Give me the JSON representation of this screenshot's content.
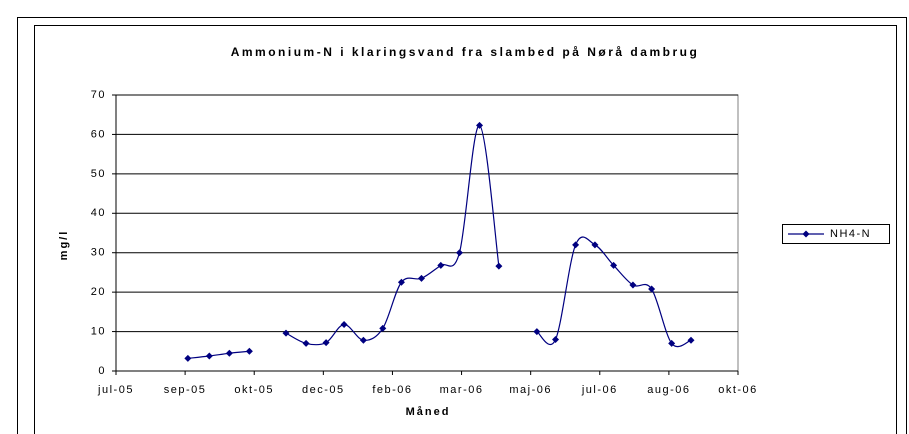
{
  "chart_data": {
    "type": "line",
    "title": "Ammonium-N i klaringsvand fra slambed på Nørå dambrug",
    "x_label": "Måned",
    "y_label": "mg/l",
    "xlim": [
      0,
      9
    ],
    "xticks": [
      {
        "value": 0,
        "label": "jul-05"
      },
      {
        "value": 1,
        "label": "sep-05"
      },
      {
        "value": 2,
        "label": "okt-05"
      },
      {
        "value": 3,
        "label": "dec-05"
      },
      {
        "value": 4,
        "label": "feb-06"
      },
      {
        "value": 5,
        "label": "mar-06"
      },
      {
        "value": 6,
        "label": "maj-06"
      },
      {
        "value": 7,
        "label": "jul-06"
      },
      {
        "value": 8,
        "label": "aug-06"
      },
      {
        "value": 9,
        "label": "okt-06"
      }
    ],
    "ylim": [
      0,
      70
    ],
    "yticks": [
      0,
      10,
      20,
      30,
      40,
      50,
      60,
      70
    ],
    "grid": true,
    "legend": "right",
    "x": [
      1.04,
      1.35,
      1.64,
      1.93,
      null,
      2.46,
      2.75,
      3.04,
      3.3,
      3.58,
      3.86,
      4.13,
      4.42,
      4.7,
      4.97,
      5.26,
      5.54,
      null,
      6.09,
      6.36,
      6.65,
      6.93,
      7.2,
      7.48,
      7.75,
      8.04,
      8.32
    ],
    "series": [
      {
        "name": "NH4-N",
        "color": "#000080",
        "values": [
          3.2,
          3.8,
          4.5,
          5.0,
          null,
          9.6,
          7.0,
          7.2,
          11.8,
          7.8,
          10.8,
          22.5,
          23.5,
          26.8,
          30.0,
          62.3,
          26.6,
          null,
          10.0,
          8.0,
          32.0,
          32.0,
          26.8,
          21.8,
          20.8,
          7.0,
          7.8
        ]
      }
    ]
  }
}
